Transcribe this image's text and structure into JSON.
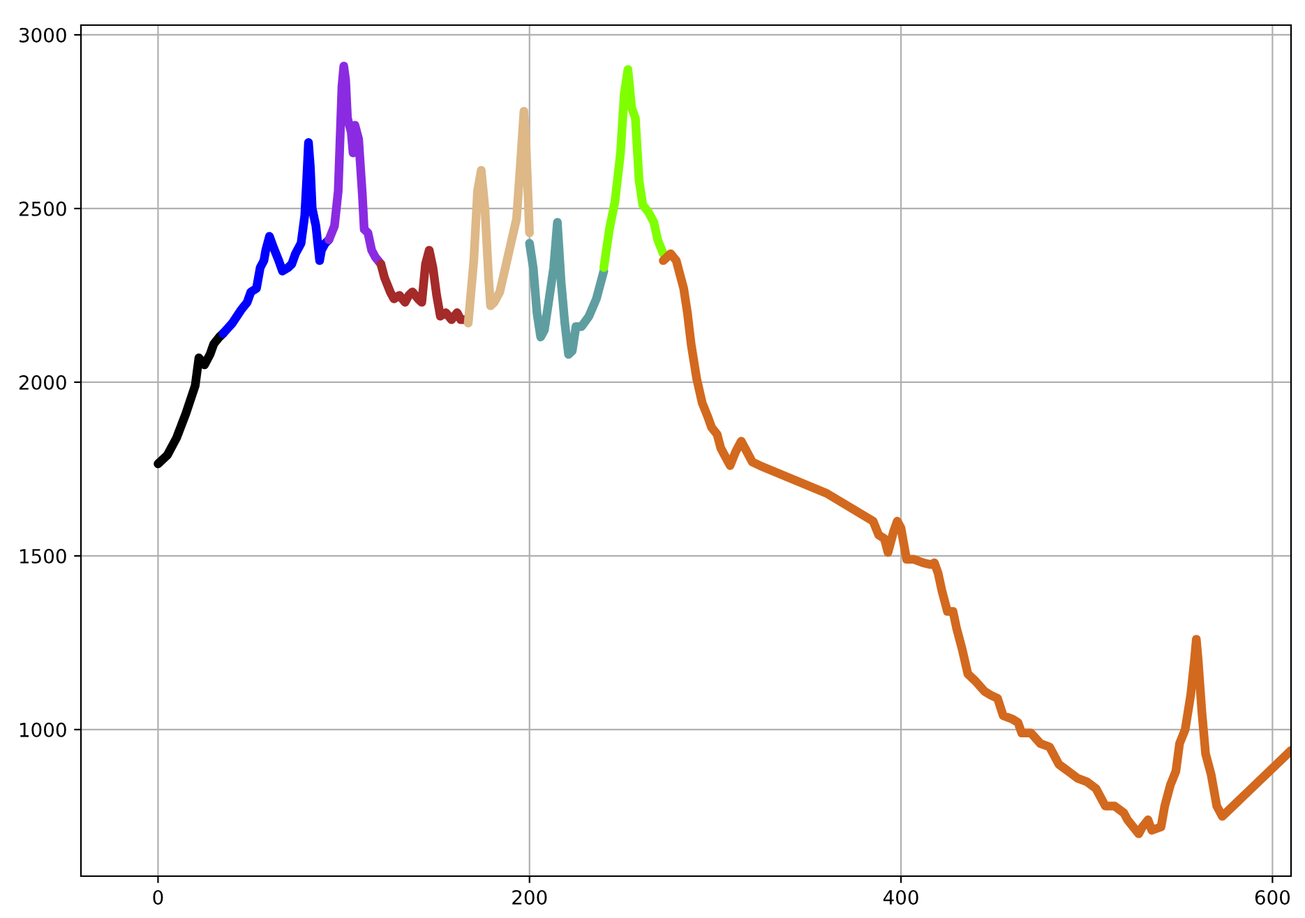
{
  "chart_data": {
    "type": "line",
    "xlim": [
      -41.5,
      610
    ],
    "ylim": [
      578,
      3028
    ],
    "xticks": [
      0,
      200,
      400,
      600
    ],
    "yticks": [
      1000,
      1500,
      2000,
      2500,
      3000
    ],
    "grid": true,
    "line_style": "solid",
    "marker": "none",
    "series": [
      {
        "color": "#000000",
        "x": [
          0,
          5,
          10,
          15,
          20,
          22,
          25,
          28,
          30,
          33,
          35
        ],
        "values": [
          1765,
          1790,
          1840,
          1910,
          1990,
          2070,
          2050,
          2080,
          2110,
          2130,
          2140
        ]
      },
      {
        "color": "#0000ff",
        "x": [
          35,
          40,
          45,
          48,
          50,
          53,
          55,
          57,
          58,
          60,
          62,
          65,
          67,
          70,
          72,
          74,
          77,
          79,
          80,
          81,
          82,
          83,
          85,
          87,
          88,
          90,
          92
        ],
        "values": [
          2140,
          2170,
          2210,
          2230,
          2260,
          2270,
          2330,
          2350,
          2380,
          2420,
          2390,
          2350,
          2320,
          2330,
          2340,
          2370,
          2400,
          2480,
          2580,
          2690,
          2620,
          2500,
          2450,
          2350,
          2380,
          2400,
          2410
        ]
      },
      {
        "color": "#8a2be2",
        "x": [
          92,
          95,
          97,
          99,
          100,
          101,
          102,
          104,
          105,
          106,
          108,
          110,
          111,
          113,
          115,
          117,
          120
        ],
        "values": [
          2410,
          2450,
          2550,
          2850,
          2910,
          2870,
          2760,
          2720,
          2660,
          2740,
          2700,
          2540,
          2440,
          2430,
          2380,
          2360,
          2340
        ]
      },
      {
        "color": "#a52a2a",
        "x": [
          120,
          122,
          125,
          127,
          130,
          133,
          135,
          137,
          140,
          142,
          144,
          146,
          148,
          150,
          152,
          155,
          158,
          161,
          163,
          167
        ],
        "values": [
          2340,
          2300,
          2260,
          2240,
          2250,
          2230,
          2250,
          2260,
          2240,
          2230,
          2340,
          2380,
          2330,
          2250,
          2190,
          2200,
          2180,
          2200,
          2180,
          2180
        ]
      },
      {
        "color": "#deb887",
        "x": [
          167,
          170,
          172,
          174,
          176,
          178,
          179,
          181,
          184,
          187,
          190,
          193,
          195,
          197,
          198,
          200
        ],
        "values": [
          2170,
          2350,
          2550,
          2610,
          2500,
          2300,
          2220,
          2230,
          2260,
          2330,
          2400,
          2470,
          2620,
          2780,
          2700,
          2430
        ]
      },
      {
        "color": "#5f9ea0",
        "x": [
          200,
          202,
          204,
          206,
          208,
          210,
          213,
          215,
          217,
          219,
          221,
          223,
          225,
          228,
          232,
          236,
          240
        ],
        "values": [
          2400,
          2330,
          2200,
          2130,
          2150,
          2220,
          2330,
          2460,
          2290,
          2170,
          2080,
          2090,
          2160,
          2160,
          2190,
          2240,
          2320
        ]
      },
      {
        "color": "#7fff00",
        "x": [
          240,
          243,
          246,
          249,
          251,
          253,
          255,
          257,
          259,
          261,
          264,
          267,
          269,
          272
        ],
        "values": [
          2330,
          2440,
          2520,
          2660,
          2830,
          2900,
          2790,
          2760,
          2580,
          2510,
          2490,
          2460,
          2410,
          2370
        ]
      },
      {
        "color": "#d2691e",
        "x": [
          272,
          276,
          279,
          281,
          283,
          285,
          287,
          290,
          293,
          296,
          298,
          301,
          303,
          305,
          308,
          311,
          314,
          317,
          320,
          324,
          360,
          385,
          388,
          391,
          393,
          396,
          398,
          400,
          402,
          403,
          407,
          412,
          416,
          418,
          420,
          422,
          425,
          428,
          430,
          433,
          436,
          440,
          445,
          448,
          452,
          455,
          460,
          463,
          465,
          470,
          475,
          480,
          485,
          490,
          495,
          500,
          505,
          507,
          510,
          515,
          520,
          522,
          525,
          528,
          530,
          533,
          535,
          540,
          542,
          545,
          548,
          550,
          553,
          556,
          558,
          559,
          560,
          562,
          564,
          567,
          570,
          573,
          610
        ],
        "values": [
          2350,
          2370,
          2350,
          2310,
          2270,
          2200,
          2110,
          2010,
          1940,
          1900,
          1870,
          1850,
          1810,
          1790,
          1760,
          1800,
          1830,
          1800,
          1770,
          1760,
          1680,
          1600,
          1560,
          1550,
          1510,
          1570,
          1600,
          1580,
          1520,
          1490,
          1490,
          1480,
          1475,
          1480,
          1450,
          1400,
          1340,
          1340,
          1290,
          1230,
          1160,
          1140,
          1110,
          1100,
          1090,
          1040,
          1030,
          1020,
          990,
          990,
          960,
          950,
          900,
          880,
          860,
          850,
          830,
          810,
          780,
          780,
          760,
          740,
          720,
          700,
          720,
          740,
          710,
          720,
          780,
          840,
          880,
          960,
          1000,
          1100,
          1200,
          1260,
          1200,
          1050,
          930,
          870,
          780,
          750,
          940
        ]
      }
    ]
  }
}
